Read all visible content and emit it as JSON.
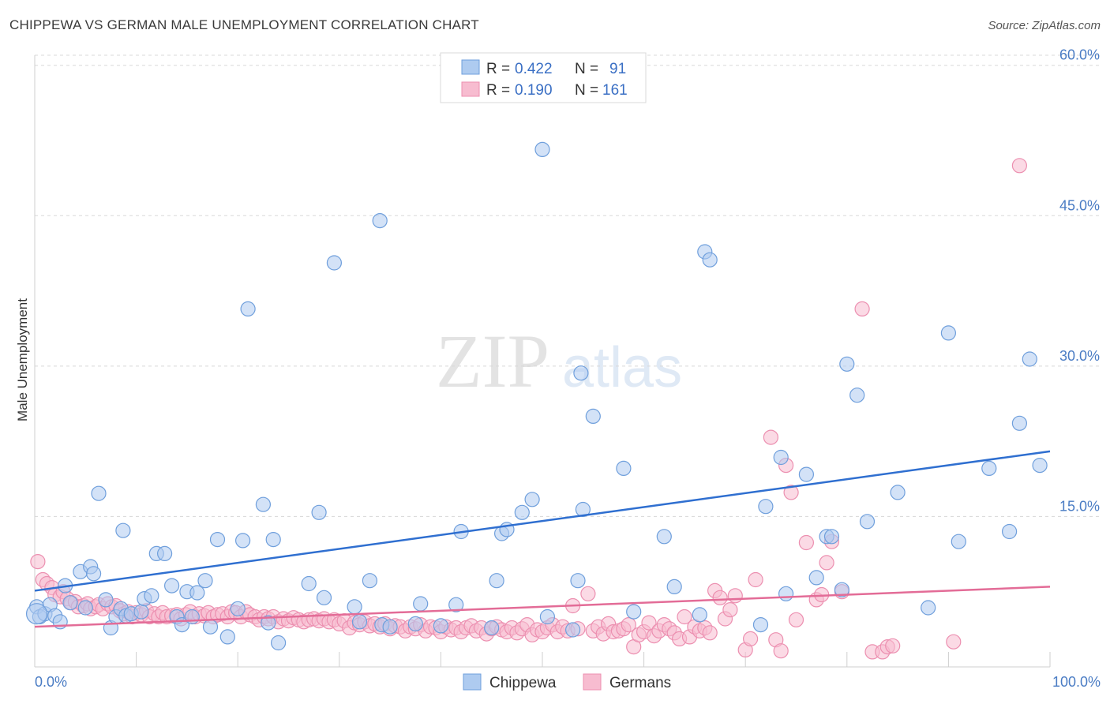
{
  "title": "CHIPPEWA VS GERMAN MALE UNEMPLOYMENT CORRELATION CHART",
  "source": "Source: ZipAtlas.com",
  "watermark": {
    "zip": "ZIP",
    "atlas": "atlas"
  },
  "legend": {
    "r_label": "R =",
    "n_label": "N =",
    "items": [
      {
        "r": "0.422",
        "n": "91"
      },
      {
        "r": "0.190",
        "n": "161"
      }
    ]
  },
  "colors": {
    "chippewa_fill": "#aecbf0",
    "chippewa_stroke": "#6f9fdc",
    "chippewa_line": "#2f6fd0",
    "germans_fill": "#f7bcd0",
    "germans_stroke": "#ec8fb0",
    "germans_line": "#e36c97",
    "grid": "#d8d8d8",
    "tick_text": "#4a7cc4"
  },
  "chart_data": {
    "type": "scatter",
    "title": "CHIPPEWA VS GERMAN MALE UNEMPLOYMENT CORRELATION CHART",
    "xlabel": "",
    "ylabel": "Male Unemployment",
    "xlim": [
      0,
      100
    ],
    "ylim": [
      0,
      61
    ],
    "x_tick_labels": [
      "0.0%",
      "100.0%"
    ],
    "y_ticks": [
      15,
      30,
      45,
      60
    ],
    "y_tick_labels": [
      "15.0%",
      "30.0%",
      "45.0%",
      "60.0%"
    ],
    "grid": "horizontal dashed",
    "legend_position": "top-center",
    "series": [
      {
        "name": "Chippewa",
        "trend": [
          [
            0,
            7.6
          ],
          [
            100,
            21.5
          ]
        ],
        "points": [
          [
            0.2,
            6.0
          ],
          [
            0.5,
            5.0
          ],
          [
            1.0,
            5.3
          ],
          [
            1.5,
            6.2
          ],
          [
            2.0,
            5.1
          ],
          [
            2.5,
            4.5
          ],
          [
            3.0,
            8.1
          ],
          [
            3.5,
            6.4
          ],
          [
            4.5,
            9.5
          ],
          [
            5.0,
            5.9
          ],
          [
            5.5,
            10.0
          ],
          [
            5.8,
            9.3
          ],
          [
            6.3,
            17.3
          ],
          [
            7.0,
            6.7
          ],
          [
            7.5,
            3.9
          ],
          [
            8.0,
            5.0
          ],
          [
            8.5,
            5.8
          ],
          [
            8.7,
            13.6
          ],
          [
            9.0,
            5.1
          ],
          [
            9.5,
            5.3
          ],
          [
            10.5,
            5.5
          ],
          [
            10.8,
            6.8
          ],
          [
            11.5,
            7.1
          ],
          [
            12.0,
            11.3
          ],
          [
            12.8,
            11.3
          ],
          [
            13.5,
            8.1
          ],
          [
            14.0,
            5.0
          ],
          [
            14.5,
            4.2
          ],
          [
            15.0,
            7.5
          ],
          [
            15.5,
            5.0
          ],
          [
            16.0,
            7.4
          ],
          [
            16.8,
            8.6
          ],
          [
            17.3,
            4.0
          ],
          [
            18.0,
            12.7
          ],
          [
            19.0,
            3.0
          ],
          [
            20.0,
            5.8
          ],
          [
            20.5,
            12.6
          ],
          [
            21.0,
            35.7
          ],
          [
            22.5,
            16.2
          ],
          [
            23.0,
            4.4
          ],
          [
            23.5,
            12.7
          ],
          [
            24.0,
            2.4
          ],
          [
            27.0,
            8.3
          ],
          [
            28.0,
            15.4
          ],
          [
            28.5,
            6.9
          ],
          [
            29.5,
            40.3
          ],
          [
            31.5,
            6.0
          ],
          [
            32.0,
            4.5
          ],
          [
            33.0,
            8.6
          ],
          [
            34.0,
            44.5
          ],
          [
            34.2,
            4.2
          ],
          [
            35.0,
            4.0
          ],
          [
            37.5,
            4.3
          ],
          [
            38.0,
            6.3
          ],
          [
            40.0,
            4.1
          ],
          [
            41.5,
            6.2
          ],
          [
            42.0,
            13.5
          ],
          [
            45.0,
            3.9
          ],
          [
            45.5,
            8.6
          ],
          [
            46.0,
            13.3
          ],
          [
            46.5,
            13.7
          ],
          [
            48.0,
            15.4
          ],
          [
            49.0,
            16.7
          ],
          [
            50.0,
            51.6
          ],
          [
            50.5,
            5.0
          ],
          [
            53.0,
            3.7
          ],
          [
            53.5,
            8.6
          ],
          [
            53.8,
            29.3
          ],
          [
            54.0,
            15.7
          ],
          [
            55.0,
            25.0
          ],
          [
            58.0,
            19.8
          ],
          [
            59.0,
            5.5
          ],
          [
            62.0,
            13.0
          ],
          [
            63.0,
            8.0
          ],
          [
            65.5,
            5.2
          ],
          [
            66.0,
            41.4
          ],
          [
            66.5,
            40.6
          ],
          [
            71.5,
            4.2
          ],
          [
            72.0,
            16.0
          ],
          [
            73.5,
            20.9
          ],
          [
            74.0,
            7.3
          ],
          [
            76.0,
            19.2
          ],
          [
            77.0,
            8.9
          ],
          [
            78.0,
            13.0
          ],
          [
            78.5,
            13.0
          ],
          [
            79.5,
            7.7
          ],
          [
            80.0,
            30.2
          ],
          [
            81.0,
            27.1
          ],
          [
            82.0,
            14.5
          ],
          [
            85.0,
            17.4
          ],
          [
            88.0,
            5.9
          ],
          [
            90.0,
            33.3
          ],
          [
            91.0,
            12.5
          ],
          [
            94.0,
            19.8
          ],
          [
            96.0,
            13.5
          ],
          [
            97.0,
            24.3
          ],
          [
            98.0,
            30.7
          ],
          [
            99.0,
            20.1
          ]
        ]
      },
      {
        "name": "Germans",
        "trend": [
          [
            0,
            4.0
          ],
          [
            100,
            8.0
          ]
        ],
        "points": [
          [
            0.3,
            10.5
          ],
          [
            0.8,
            8.7
          ],
          [
            1.2,
            8.3
          ],
          [
            1.7,
            7.9
          ],
          [
            2.0,
            7.2
          ],
          [
            2.5,
            7.0
          ],
          [
            2.8,
            7.5
          ],
          [
            3.2,
            6.8
          ],
          [
            3.6,
            6.4
          ],
          [
            4.0,
            6.5
          ],
          [
            4.3,
            6.0
          ],
          [
            4.8,
            6.1
          ],
          [
            5.2,
            6.3
          ],
          [
            5.5,
            5.8
          ],
          [
            6.0,
            6.0
          ],
          [
            6.3,
            6.2
          ],
          [
            6.7,
            5.8
          ],
          [
            7.2,
            6.3
          ],
          [
            7.6,
            6.0
          ],
          [
            8.0,
            6.1
          ],
          [
            8.4,
            5.6
          ],
          [
            8.8,
            5.3
          ],
          [
            9.2,
            5.5
          ],
          [
            9.6,
            5.0
          ],
          [
            10.0,
            5.4
          ],
          [
            10.5,
            5.2
          ],
          [
            11.0,
            5.6
          ],
          [
            11.3,
            5.0
          ],
          [
            11.8,
            5.3
          ],
          [
            12.2,
            5.0
          ],
          [
            12.6,
            5.4
          ],
          [
            13.0,
            5.0
          ],
          [
            13.5,
            5.1
          ],
          [
            14.0,
            5.2
          ],
          [
            14.4,
            4.8
          ],
          [
            14.9,
            5.2
          ],
          [
            15.3,
            5.5
          ],
          [
            15.8,
            5.0
          ],
          [
            16.2,
            5.3
          ],
          [
            16.7,
            5.1
          ],
          [
            17.1,
            5.4
          ],
          [
            17.6,
            5.0
          ],
          [
            18.0,
            5.2
          ],
          [
            18.5,
            5.3
          ],
          [
            19.0,
            5.0
          ],
          [
            19.4,
            5.5
          ],
          [
            19.8,
            5.4
          ],
          [
            20.3,
            5.0
          ],
          [
            20.8,
            5.5
          ],
          [
            21.2,
            5.2
          ],
          [
            21.7,
            5.0
          ],
          [
            22.1,
            4.7
          ],
          [
            22.6,
            5.0
          ],
          [
            23.0,
            4.8
          ],
          [
            23.5,
            5.0
          ],
          [
            24.0,
            4.5
          ],
          [
            24.5,
            4.8
          ],
          [
            25.0,
            4.6
          ],
          [
            25.5,
            4.9
          ],
          [
            26.0,
            4.7
          ],
          [
            26.5,
            4.5
          ],
          [
            27.0,
            4.7
          ],
          [
            27.5,
            4.8
          ],
          [
            28.0,
            4.6
          ],
          [
            28.5,
            4.8
          ],
          [
            29.0,
            4.5
          ],
          [
            29.5,
            4.7
          ],
          [
            30.0,
            4.3
          ],
          [
            30.5,
            4.6
          ],
          [
            31.0,
            3.9
          ],
          [
            31.5,
            4.4
          ],
          [
            32.0,
            4.2
          ],
          [
            32.5,
            4.5
          ],
          [
            33.0,
            4.1
          ],
          [
            33.5,
            4.3
          ],
          [
            34.0,
            4.0
          ],
          [
            34.5,
            4.3
          ],
          [
            35.0,
            3.8
          ],
          [
            35.5,
            4.1
          ],
          [
            36.0,
            4.0
          ],
          [
            36.5,
            3.6
          ],
          [
            37.0,
            4.0
          ],
          [
            37.5,
            3.8
          ],
          [
            38.0,
            4.2
          ],
          [
            38.5,
            3.6
          ],
          [
            39.0,
            4.0
          ],
          [
            39.5,
            3.9
          ],
          [
            40.0,
            3.5
          ],
          [
            40.5,
            4.0
          ],
          [
            41.0,
            3.7
          ],
          [
            41.5,
            3.9
          ],
          [
            42.0,
            3.5
          ],
          [
            42.5,
            3.9
          ],
          [
            43.0,
            4.1
          ],
          [
            43.5,
            3.6
          ],
          [
            44.0,
            3.9
          ],
          [
            44.5,
            3.3
          ],
          [
            45.0,
            3.8
          ],
          [
            45.5,
            4.0
          ],
          [
            46.0,
            3.7
          ],
          [
            46.5,
            3.5
          ],
          [
            47.0,
            3.9
          ],
          [
            47.5,
            3.4
          ],
          [
            48.0,
            3.8
          ],
          [
            48.5,
            4.2
          ],
          [
            49.0,
            3.2
          ],
          [
            49.5,
            3.7
          ],
          [
            50.0,
            3.5
          ],
          [
            50.5,
            3.9
          ],
          [
            51.0,
            4.2
          ],
          [
            51.5,
            3.5
          ],
          [
            52.0,
            4.0
          ],
          [
            52.5,
            3.6
          ],
          [
            53.0,
            6.1
          ],
          [
            53.5,
            3.8
          ],
          [
            54.5,
            7.3
          ],
          [
            55.0,
            3.6
          ],
          [
            55.5,
            4.0
          ],
          [
            56.0,
            3.3
          ],
          [
            56.5,
            4.3
          ],
          [
            57.0,
            3.5
          ],
          [
            57.5,
            3.6
          ],
          [
            58.0,
            3.8
          ],
          [
            58.5,
            4.2
          ],
          [
            59.0,
            2.0
          ],
          [
            59.5,
            3.2
          ],
          [
            60.0,
            3.5
          ],
          [
            60.5,
            4.4
          ],
          [
            61.0,
            3.1
          ],
          [
            61.5,
            3.6
          ],
          [
            62.0,
            4.2
          ],
          [
            62.5,
            3.8
          ],
          [
            63.0,
            3.4
          ],
          [
            63.5,
            2.8
          ],
          [
            64.0,
            5.0
          ],
          [
            64.5,
            3.0
          ],
          [
            65.0,
            4.0
          ],
          [
            65.5,
            3.6
          ],
          [
            66.0,
            3.9
          ],
          [
            66.5,
            3.4
          ],
          [
            67.0,
            7.6
          ],
          [
            67.5,
            6.9
          ],
          [
            68.0,
            4.8
          ],
          [
            68.5,
            5.7
          ],
          [
            69.0,
            7.1
          ],
          [
            70.0,
            1.7
          ],
          [
            70.5,
            2.8
          ],
          [
            71.0,
            8.7
          ],
          [
            72.5,
            22.9
          ],
          [
            73.0,
            2.7
          ],
          [
            73.5,
            1.6
          ],
          [
            74.0,
            20.1
          ],
          [
            74.5,
            17.4
          ],
          [
            75.0,
            4.7
          ],
          [
            76.0,
            12.4
          ],
          [
            77.0,
            6.7
          ],
          [
            77.5,
            7.2
          ],
          [
            78.0,
            10.4
          ],
          [
            78.5,
            12.5
          ],
          [
            79.5,
            7.5
          ],
          [
            81.5,
            35.7
          ],
          [
            82.5,
            1.5
          ],
          [
            83.5,
            1.5
          ],
          [
            84.0,
            2.0
          ],
          [
            84.5,
            2.1
          ],
          [
            90.5,
            2.5
          ],
          [
            97.0,
            50.0
          ]
        ]
      }
    ]
  },
  "bottom_legend": [
    "Chippewa",
    "Germans"
  ]
}
